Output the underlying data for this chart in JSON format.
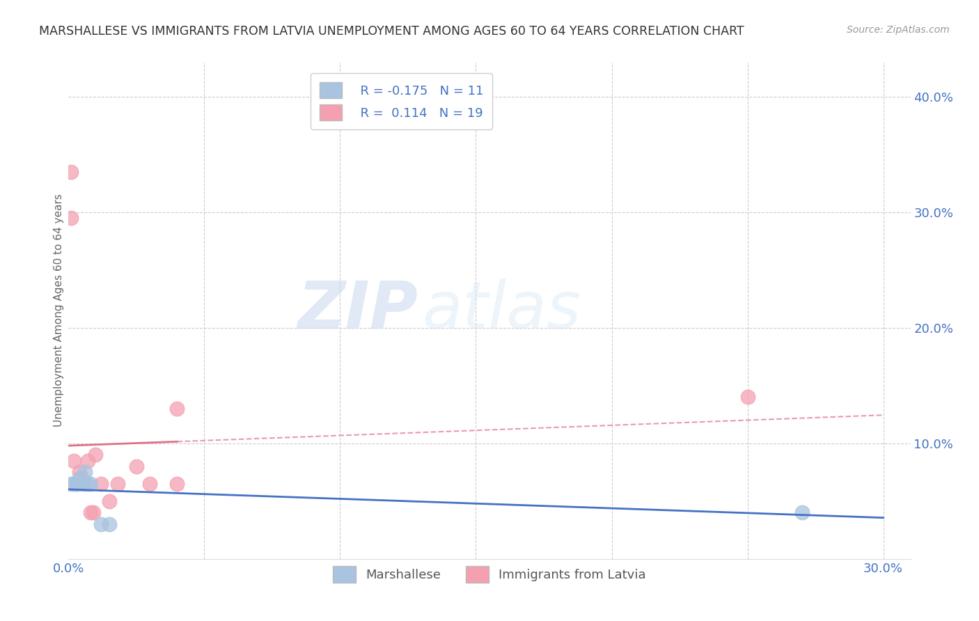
{
  "title": "MARSHALLESE VS IMMIGRANTS FROM LATVIA UNEMPLOYMENT AMONG AGES 60 TO 64 YEARS CORRELATION CHART",
  "source": "Source: ZipAtlas.com",
  "ylabel": "Unemployment Among Ages 60 to 64 years",
  "xlim": [
    0.0,
    0.31
  ],
  "ylim": [
    0.0,
    0.43
  ],
  "xticks": [
    0.0,
    0.05,
    0.1,
    0.15,
    0.2,
    0.25,
    0.3
  ],
  "yticks": [
    0.0,
    0.1,
    0.2,
    0.3,
    0.4
  ],
  "marshallese_color": "#a8c4e0",
  "latvia_color": "#f4a0b0",
  "marshallese_line_color": "#4472c4",
  "latvia_line_color": "#e07088",
  "marshallese_R": -0.175,
  "marshallese_N": 11,
  "latvia_R": 0.114,
  "latvia_N": 19,
  "marshallese_x": [
    0.001,
    0.002,
    0.003,
    0.004,
    0.005,
    0.006,
    0.007,
    0.008,
    0.012,
    0.015,
    0.27
  ],
  "marshallese_y": [
    0.065,
    0.065,
    0.065,
    0.07,
    0.065,
    0.075,
    0.065,
    0.065,
    0.03,
    0.03,
    0.04
  ],
  "latvia_x": [
    0.001,
    0.001,
    0.002,
    0.003,
    0.004,
    0.005,
    0.006,
    0.007,
    0.008,
    0.009,
    0.01,
    0.012,
    0.015,
    0.018,
    0.025,
    0.03,
    0.04,
    0.04,
    0.25
  ],
  "latvia_y": [
    0.335,
    0.295,
    0.085,
    0.065,
    0.075,
    0.07,
    0.065,
    0.085,
    0.04,
    0.04,
    0.09,
    0.065,
    0.05,
    0.065,
    0.08,
    0.065,
    0.13,
    0.065,
    0.14
  ],
  "watermark_zip": "ZIP",
  "watermark_atlas": "atlas",
  "background_color": "#ffffff",
  "grid_color": "#cccccc",
  "title_color": "#333333",
  "axis_tick_color": "#4472c4",
  "ylabel_color": "#666666",
  "legend_label1": "Marshallese",
  "legend_label2": "Immigrants from Latvia",
  "legend_R1_color": "#e05070",
  "legend_R2_color": "#4472c4",
  "source_color": "#999999"
}
